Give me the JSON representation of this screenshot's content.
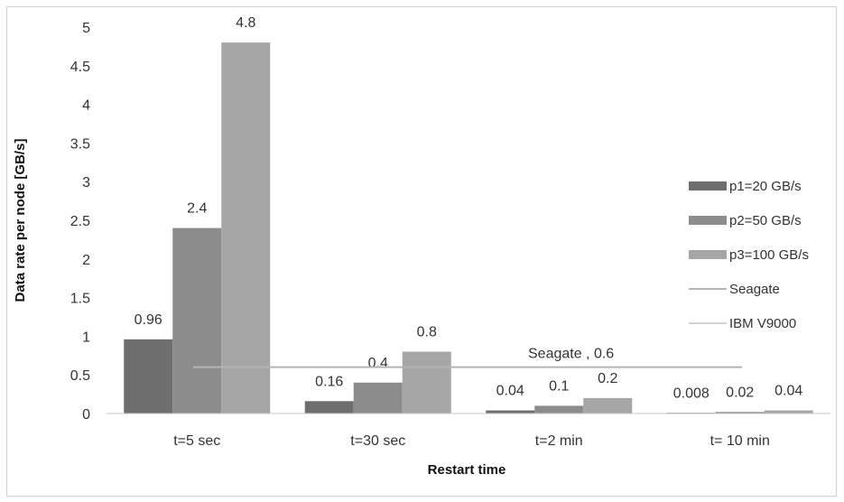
{
  "chart_data": {
    "type": "bar",
    "xlabel": "Restart time",
    "ylabel": "Data rate per node [GB/s]",
    "ylim": [
      0,
      5
    ],
    "yticks": [
      "0",
      "0.5",
      "1",
      "1.5",
      "2",
      "2.5",
      "3",
      "3.5",
      "4",
      "4.5",
      "5"
    ],
    "grid": false,
    "legend_position": "right",
    "categories": [
      "t=5 sec",
      "t=30 sec",
      "t=2 min",
      "t= 10 min"
    ],
    "series": [
      {
        "name": "p1=20 GB/s",
        "values": [
          0.96,
          0.16,
          0.04,
          0.008
        ],
        "labels": [
          "0.96",
          "0.16",
          "0.04",
          "0.008"
        ],
        "color": "#6e6e6e"
      },
      {
        "name": "p2=50 GB/s",
        "values": [
          2.4,
          0.4,
          0.1,
          0.02
        ],
        "labels": [
          "2.4",
          "0.4",
          "0.1",
          "0.02"
        ],
        "color": "#8c8c8c"
      },
      {
        "name": "p3=100 GB/s",
        "values": [
          4.8,
          0.8,
          0.2,
          0.04
        ],
        "labels": [
          "4.8",
          "0.8",
          "0.2",
          "0.04"
        ],
        "color": "#a6a6a6"
      }
    ],
    "reference_lines": [
      {
        "name": "Seagate",
        "value": 0.6,
        "label": "Seagate , 0.6",
        "color": "#b4b4b4"
      },
      {
        "name": "IBM V9000",
        "value": null,
        "label": "",
        "color": "#d2d2d2"
      }
    ]
  }
}
